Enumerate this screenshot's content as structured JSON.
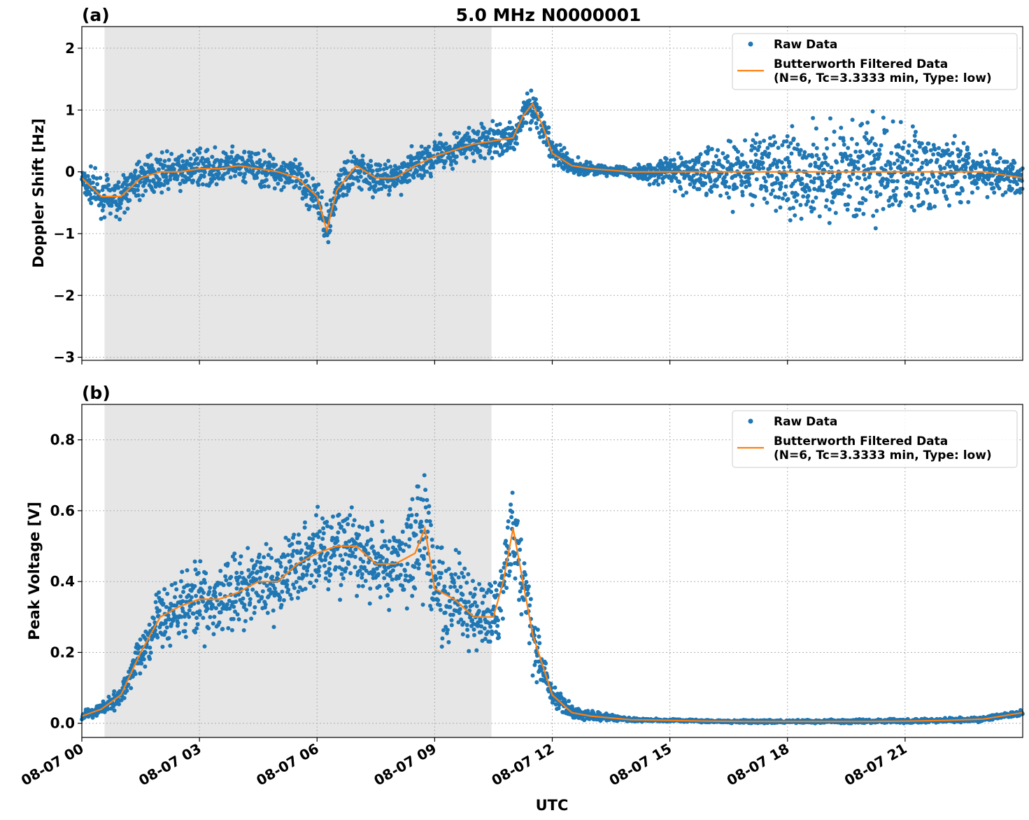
{
  "figure": {
    "title": "5.0 MHz N0000001",
    "xlabel": "UTC",
    "x_tick_labels": [
      "08-07 00",
      "08-07 03",
      "08-07 06",
      "08-07 09",
      "08-07 12",
      "08-07 15",
      "08-07 18",
      "08-07 21"
    ],
    "colors": {
      "raw": "#1f77b4",
      "filtered": "#ff7f0e",
      "shade": "#e6e6e6",
      "grid": "#b0b0b0"
    }
  },
  "legend": {
    "raw_label": "Raw Data",
    "filtered_label_line1": "Butterworth Filtered Data",
    "filtered_label_line2": "(N=6, Tc=3.3333 min, Type: low)"
  },
  "chart_data": [
    {
      "panel": "(a)",
      "type": "scatter",
      "ylabel": "Doppler Shift [Hz]",
      "xlim_hours": [
        0,
        24
      ],
      "ylim": [
        -3.05,
        2.35
      ],
      "y_ticks": [
        2,
        1,
        0,
        -1,
        -2,
        -3
      ],
      "y_tick_labels": [
        "2",
        "1",
        "0",
        "−1",
        "−2",
        "−3"
      ],
      "shaded_interval_hours": [
        0.58,
        10.45
      ],
      "grid": true,
      "legend_position": "upper right",
      "series": [
        {
          "name": "Butterworth Filtered Data",
          "kind": "line",
          "x_hours": [
            0,
            0.5,
            1,
            1.5,
            2,
            2.5,
            3,
            3.5,
            4,
            4.5,
            5,
            5.5,
            6,
            6.25,
            6.5,
            7,
            7.5,
            8,
            8.5,
            9,
            9.5,
            10,
            10.5,
            11,
            11.25,
            11.5,
            11.75,
            12,
            12.5,
            13,
            14,
            15,
            16,
            17,
            18,
            19,
            20,
            21,
            22,
            23,
            24
          ],
          "y": [
            -0.1,
            -0.4,
            -0.4,
            -0.1,
            0.0,
            0.0,
            0.05,
            0.05,
            0.1,
            0.05,
            0.0,
            -0.1,
            -0.4,
            -0.95,
            -0.3,
            0.1,
            -0.1,
            -0.1,
            0.1,
            0.25,
            0.35,
            0.45,
            0.5,
            0.55,
            0.9,
            1.1,
            0.75,
            0.3,
            0.1,
            0.05,
            0.0,
            0.0,
            0.0,
            0.0,
            0.0,
            0.0,
            0.0,
            0.0,
            0.0,
            0.0,
            -0.1
          ]
        },
        {
          "name": "Raw Data",
          "kind": "scatter",
          "spread_envelope": {
            "x_hours": [
              0,
              1,
              2,
              3,
              4,
              5,
              6,
              6.25,
              7,
              8,
              9,
              10,
              11,
              11.5,
              12,
              13,
              14,
              15,
              16,
              17,
              18,
              19,
              20,
              21,
              22,
              23,
              24
            ],
            "half_width_hz": [
              0.4,
              0.45,
              0.4,
              0.4,
              0.4,
              0.4,
              0.45,
              0.45,
              0.4,
              0.4,
              0.4,
              0.4,
              0.35,
              0.4,
              0.3,
              0.15,
              0.1,
              0.4,
              0.6,
              0.8,
              1.0,
              1.1,
              1.1,
              1.1,
              0.8,
              0.5,
              0.4
            ]
          }
        }
      ]
    },
    {
      "panel": "(b)",
      "type": "scatter",
      "ylabel": "Peak Voltage [V]",
      "xlim_hours": [
        0,
        24
      ],
      "ylim": [
        -0.04,
        0.9
      ],
      "y_ticks": [
        0.0,
        0.2,
        0.4,
        0.6,
        0.8
      ],
      "y_tick_labels": [
        "0.0",
        "0.2",
        "0.4",
        "0.6",
        "0.8"
      ],
      "shaded_interval_hours": [
        0.58,
        10.45
      ],
      "grid": true,
      "legend_position": "upper right",
      "series": [
        {
          "name": "Butterworth Filtered Data",
          "kind": "line",
          "x_hours": [
            0,
            0.5,
            1,
            1.5,
            2,
            2.5,
            3,
            3.5,
            4,
            4.5,
            5,
            5.5,
            6,
            6.5,
            7,
            7.5,
            8,
            8.5,
            8.75,
            9,
            9.5,
            10,
            10.5,
            10.75,
            11,
            11.25,
            11.5,
            12,
            12.5,
            13,
            14,
            15,
            16,
            17,
            18,
            19,
            20,
            21,
            22,
            23,
            24
          ],
          "y": [
            0.02,
            0.04,
            0.08,
            0.2,
            0.3,
            0.33,
            0.35,
            0.35,
            0.37,
            0.4,
            0.4,
            0.45,
            0.48,
            0.5,
            0.5,
            0.45,
            0.45,
            0.48,
            0.55,
            0.38,
            0.35,
            0.3,
            0.3,
            0.4,
            0.55,
            0.4,
            0.25,
            0.08,
            0.03,
            0.02,
            0.01,
            0.008,
            0.006,
            0.005,
            0.005,
            0.005,
            0.005,
            0.006,
            0.008,
            0.012,
            0.03
          ]
        },
        {
          "name": "Raw Data",
          "kind": "scatter",
          "spread_envelope": {
            "x_hours": [
              0,
              1,
              2,
              3,
              4,
              5,
              6,
              7,
              8,
              8.75,
              9,
              10,
              11,
              11.5,
              12,
              13,
              14,
              15,
              24
            ],
            "half_width_v": [
              0.02,
              0.04,
              0.12,
              0.15,
              0.15,
              0.15,
              0.15,
              0.18,
              0.18,
              0.25,
              0.18,
              0.15,
              0.2,
              0.15,
              0.04,
              0.02,
              0.008,
              0.005,
              0.01
            ]
          }
        }
      ]
    }
  ]
}
